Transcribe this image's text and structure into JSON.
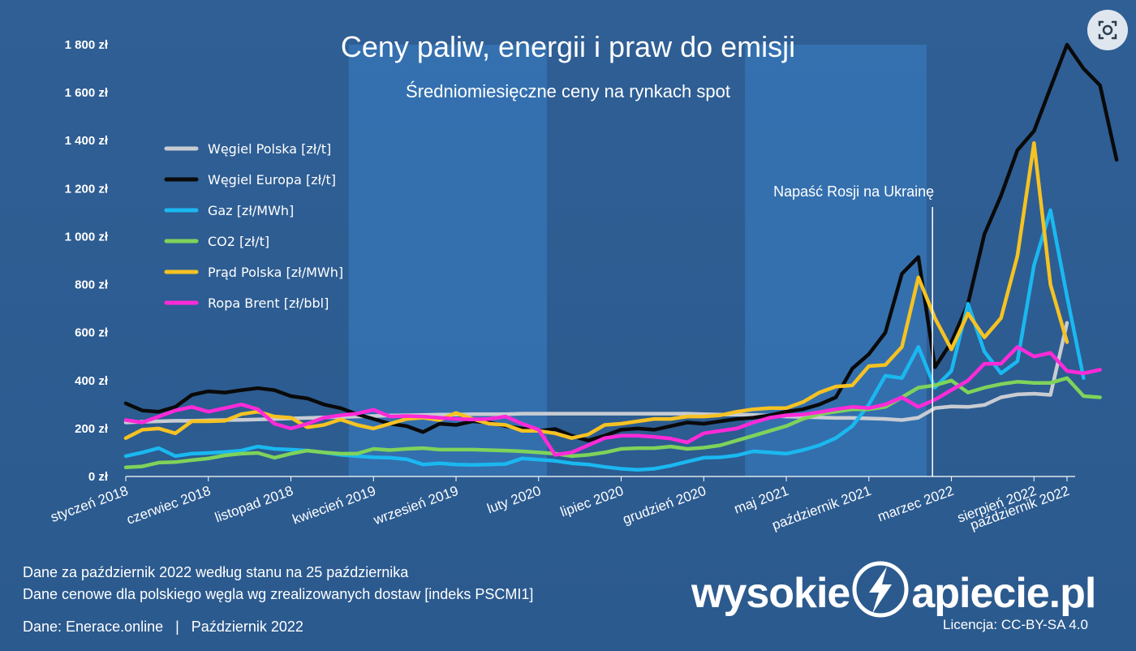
{
  "chart_data": {
    "type": "line",
    "title": "Ceny paliw, energii i praw do emisji",
    "subtitle": "Średniomiesięczne ceny na rynkach spot",
    "x_labels": [
      "styczeń 2018",
      "czerwiec 2018",
      "listopad 2018",
      "kwiecień 2019",
      "wrzesień 2019",
      "luty 2020",
      "lipiec 2020",
      "grudzień 2020",
      "maj 2021",
      "październik 2021",
      "marzec 2022",
      "sierpień 2022",
      "październik 2022"
    ],
    "x_start": "2018-01",
    "x_end": "2022-10",
    "ylim": [
      0,
      1800
    ],
    "y_ticks": [
      "0 zł",
      "200 zł",
      "400 zł",
      "600 zł",
      "800 zł",
      "1 000 zł",
      "1 200 zł",
      "1 400 zł",
      "1 600 zł",
      "1 800 zł"
    ],
    "y_tick_values": [
      0,
      200,
      400,
      600,
      800,
      1000,
      1200,
      1400,
      1600,
      1800
    ],
    "shaded_bands": [
      [
        "2019-03",
        "2020-02"
      ],
      [
        "2021-03",
        "2022-01"
      ]
    ],
    "annotation": {
      "text": "Napaść Rosji na Ukrainę",
      "x": "2022-02"
    },
    "legend_position": "left",
    "series": [
      {
        "name": "Węgiel Polska [zł/t]",
        "color": "#c8ccd2",
        "start": "2018-01",
        "values": [
          225,
          228,
          230,
          232,
          232,
          234,
          235,
          236,
          238,
          240,
          242,
          244,
          246,
          248,
          250,
          252,
          254,
          255,
          256,
          258,
          258,
          260,
          260,
          260,
          262,
          262,
          262,
          262,
          262,
          262,
          262,
          262,
          262,
          262,
          262,
          260,
          258,
          258,
          256,
          254,
          250,
          248,
          246,
          244,
          244,
          242,
          240,
          235,
          245,
          285,
          292,
          290,
          298,
          330,
          342,
          345,
          340,
          640
        ]
      },
      {
        "name": "Węgiel Europa [zł/t]",
        "color": "#0a0a0a",
        "start": "2018-01",
        "values": [
          305,
          275,
          270,
          290,
          340,
          355,
          350,
          360,
          368,
          360,
          335,
          325,
          300,
          285,
          260,
          240,
          220,
          210,
          185,
          220,
          215,
          230,
          225,
          210,
          200,
          190,
          198,
          170,
          150,
          170,
          195,
          200,
          195,
          210,
          225,
          220,
          230,
          240,
          245,
          255,
          270,
          280,
          300,
          330,
          450,
          510,
          600,
          845,
          915,
          455,
          560,
          720,
          1010,
          1170,
          1360,
          1440,
          1620,
          1800,
          1700,
          1630,
          1320
        ]
      },
      {
        "name": "Gaz [zł/MWh]",
        "color": "#1ab8f0",
        "start": "2018-01",
        "values": [
          85,
          100,
          118,
          85,
          95,
          98,
          102,
          108,
          125,
          115,
          112,
          108,
          100,
          90,
          85,
          80,
          78,
          72,
          50,
          55,
          50,
          48,
          50,
          52,
          75,
          70,
          65,
          55,
          50,
          40,
          32,
          28,
          32,
          45,
          62,
          78,
          80,
          88,
          105,
          100,
          95,
          110,
          130,
          160,
          210,
          300,
          420,
          410,
          540,
          370,
          440,
          720,
          520,
          430,
          480,
          880,
          1110,
          750,
          410
        ]
      },
      {
        "name": "CO2 [zł/t]",
        "color": "#7fd35a",
        "start": "2018-01",
        "values": [
          38,
          42,
          58,
          60,
          68,
          75,
          88,
          95,
          98,
          78,
          95,
          108,
          100,
          95,
          95,
          115,
          110,
          115,
          118,
          112,
          112,
          112,
          110,
          108,
          105,
          100,
          95,
          85,
          90,
          100,
          115,
          118,
          118,
          125,
          115,
          120,
          130,
          150,
          170,
          190,
          210,
          240,
          260,
          270,
          280,
          280,
          290,
          330,
          370,
          380,
          400,
          350,
          370,
          385,
          395,
          390,
          390,
          410,
          335,
          330
        ]
      },
      {
        "name": "Prąd Polska [zł/MWh]",
        "color": "#f6c222",
        "start": "2018-01",
        "values": [
          160,
          195,
          200,
          180,
          230,
          230,
          232,
          260,
          270,
          250,
          245,
          205,
          215,
          238,
          215,
          200,
          220,
          240,
          245,
          235,
          265,
          240,
          220,
          215,
          190,
          190,
          180,
          160,
          175,
          215,
          220,
          230,
          240,
          240,
          250,
          250,
          255,
          270,
          280,
          285,
          285,
          310,
          350,
          375,
          380,
          460,
          465,
          540,
          830,
          660,
          530,
          680,
          580,
          660,
          920,
          1390,
          800,
          560
        ]
      },
      {
        "name": "Ropa Brent [zł/bbl]",
        "color": "#ff2ad8",
        "start": "2018-01",
        "values": [
          235,
          225,
          250,
          275,
          290,
          270,
          285,
          300,
          280,
          220,
          200,
          220,
          245,
          255,
          262,
          278,
          250,
          252,
          250,
          245,
          240,
          238,
          240,
          250,
          220,
          195,
          90,
          100,
          130,
          160,
          170,
          170,
          165,
          158,
          142,
          180,
          190,
          200,
          225,
          245,
          255,
          258,
          268,
          280,
          290,
          285,
          300,
          330,
          290,
          320,
          360,
          400,
          470,
          470,
          540,
          500,
          515,
          440,
          430,
          445
        ]
      }
    ]
  },
  "footer": {
    "note1": "Dane za październik 2022 według stanu na 25 października",
    "note2": "Dane cenowe dla polskiego węgla wg zrealizowanych dostaw [indeks PSCMI1]",
    "source": "Dane: Enerace.online   |   Październik 2022",
    "brand_left": "wysokie",
    "brand_right": "apiecie.pl",
    "license": "Licencja: CC-BY-SA 4.0"
  },
  "icons": {
    "lens": "lens-search-icon",
    "logo": "lightning-logo-icon"
  }
}
